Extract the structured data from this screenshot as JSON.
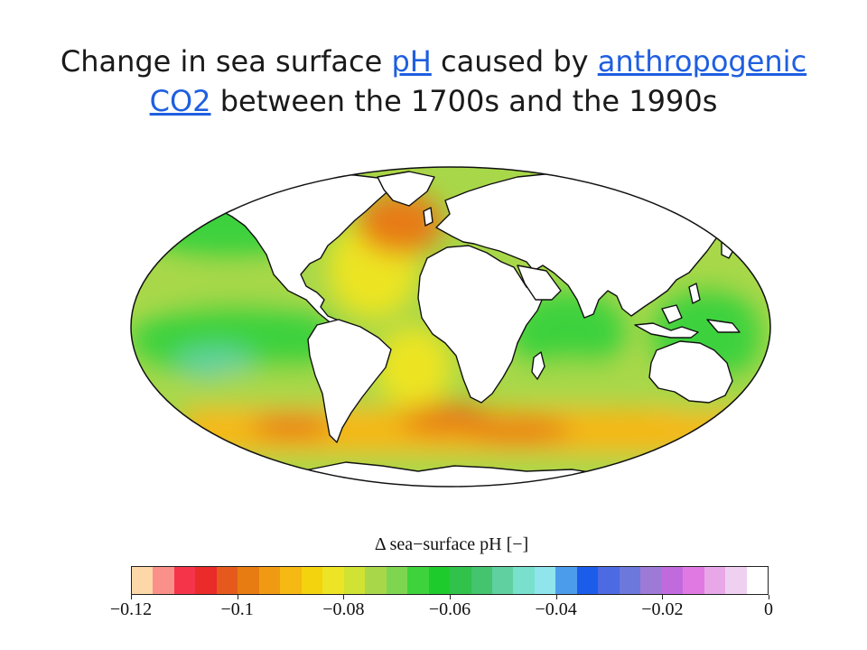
{
  "title": {
    "part1": "Change in sea surface ",
    "link1": "pH",
    "part2": " caused by ",
    "link2": "anthropogenic CO2",
    "part3": " between the 1700s and the 1990s"
  },
  "legend": {
    "label": "Δ sea−surface pH [−]",
    "ticks": [
      "−0.12",
      "−0.1",
      "−0.08",
      "−0.06",
      "−0.04",
      "−0.02",
      "0"
    ],
    "colors": [
      "#fdd7a8",
      "#f9908a",
      "#f5344a",
      "#eb2a2a",
      "#e55a1c",
      "#e77c12",
      "#f09a14",
      "#f6b812",
      "#f2d30e",
      "#ece424",
      "#d0e234",
      "#a8d84a",
      "#7ed650",
      "#3ed23c",
      "#1ecb2c",
      "#30c24a",
      "#44c46e",
      "#60d0a0",
      "#78e0cc",
      "#90e4ec",
      "#4c9cec",
      "#1c5cea",
      "#4c6ae2",
      "#6c78dc",
      "#9c7ad6",
      "#c06ade",
      "#e07ae2",
      "#e8a8e8",
      "#f0d0f0",
      "#ffffff"
    ]
  },
  "map": {
    "ocean_colors": {
      "equatorial": "#3ed23c",
      "mid_latitude": "#a8d84a",
      "subtropical": "#ece424",
      "southern_band": "#f6b812",
      "north_atlantic": "#e77c12",
      "tropical_pacific": "#60d0a0",
      "land": "#ffffff",
      "coast": "#111111"
    }
  }
}
